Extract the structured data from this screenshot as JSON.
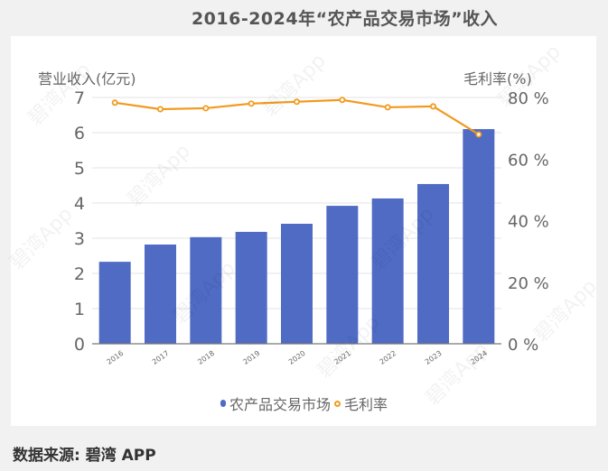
{
  "title": "2016-2024年“农产品交易市场”收入",
  "source": "数据来源: 碧湾 APP",
  "watermark": "碧湾App",
  "colors": {
    "bar": "#4f6bc4",
    "line": "#f29a1e",
    "background": "#f1f1f1",
    "panel": "#ffffff"
  },
  "legend": {
    "bar_label": "农产品交易市场",
    "line_label": "毛利率"
  },
  "chart_data": {
    "type": "bar",
    "title": "2016-2024年“农产品交易市场”收入",
    "xlabel": "",
    "ylabel": "营业收入(亿元)",
    "y2label": "毛利率(%)",
    "ylim": [
      0,
      7
    ],
    "y2lim": [
      0,
      80
    ],
    "yticks": [
      "0",
      "1",
      "2",
      "3",
      "4",
      "5",
      "6",
      "7"
    ],
    "y2ticks": [
      "0 %",
      "20 %",
      "40 %",
      "60 %",
      "80 %"
    ],
    "grid": true,
    "legend_position": "bottom",
    "categories": [
      "2016",
      "2017",
      "2018",
      "2019",
      "2020",
      "2021",
      "2022",
      "2023",
      "2024"
    ],
    "series": [
      {
        "name": "农产品交易市场",
        "type": "bar",
        "axis": "left",
        "values": [
          2.33,
          2.82,
          3.03,
          3.18,
          3.41,
          3.92,
          4.13,
          4.54,
          6.1
        ]
      },
      {
        "name": "毛利率",
        "type": "line",
        "axis": "right",
        "values": [
          78.3,
          76.2,
          76.5,
          78.0,
          78.6,
          79.2,
          76.8,
          77.1,
          68.0
        ]
      }
    ]
  }
}
